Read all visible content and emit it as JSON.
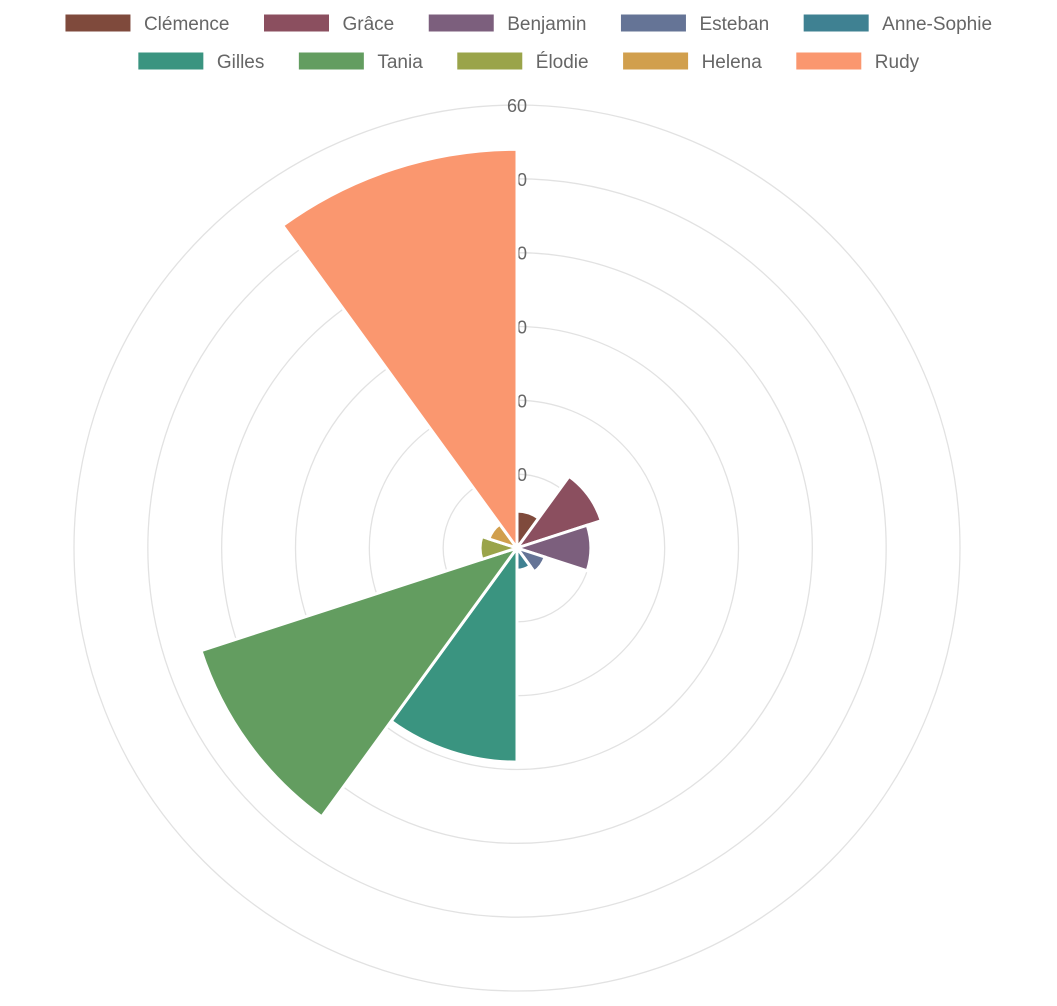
{
  "chart_data": {
    "type": "polarArea",
    "categories": [
      "Clémence",
      "Grâce",
      "Benjamin",
      "Esteban",
      "Anne-Sophie",
      "Gilles",
      "Tania",
      "Élodie",
      "Helena",
      "Rudy"
    ],
    "values": [
      5,
      12,
      10,
      4,
      3,
      29,
      45,
      5,
      4,
      54
    ],
    "colors": [
      "#7f4a3c",
      "#8b4f5f",
      "#7c5f7d",
      "#657496",
      "#3f8192",
      "#3a9480",
      "#639d60",
      "#9aa44a",
      "#d19f4d",
      "#fa976f"
    ],
    "rlim": [
      0,
      60
    ],
    "r_ticks": [
      0,
      10,
      20,
      30,
      40,
      50,
      60
    ],
    "r_tick_labels": [
      "0",
      "10",
      "20",
      "30",
      "40",
      "50",
      "60"
    ],
    "legend_position": "top",
    "grid": true
  }
}
